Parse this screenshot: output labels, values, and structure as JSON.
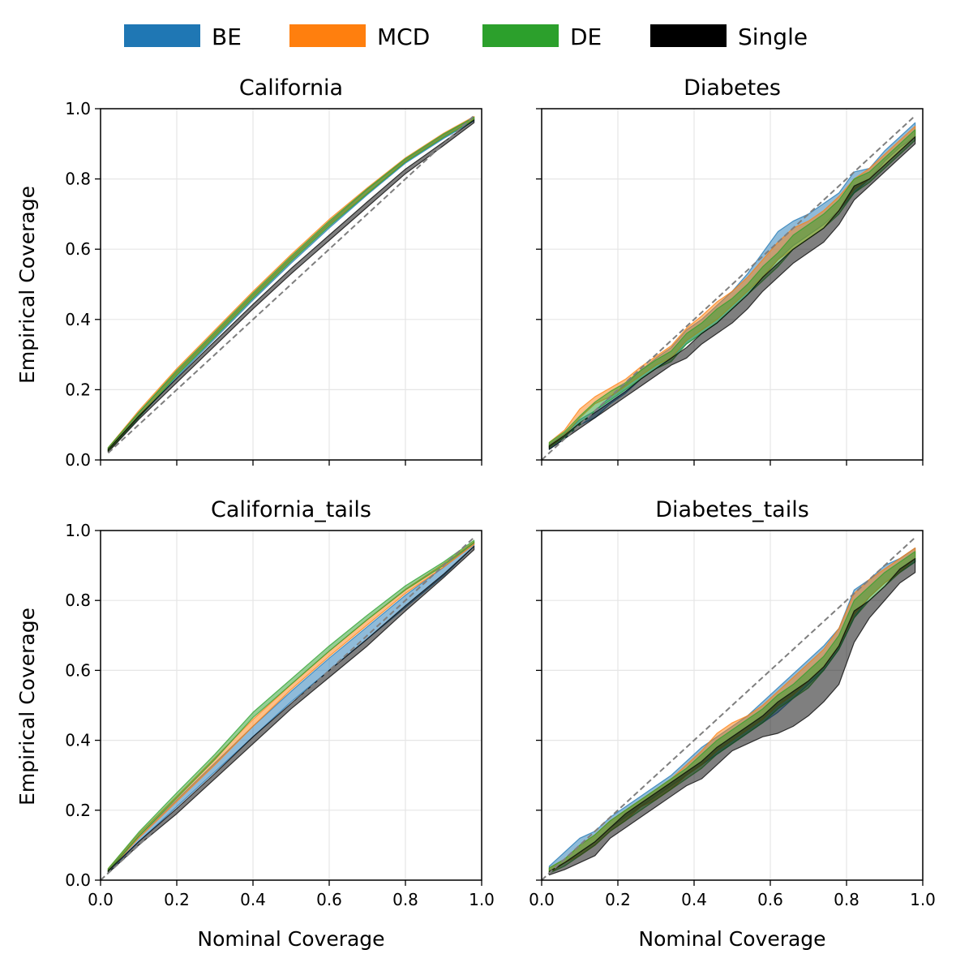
{
  "legend": {
    "items": [
      {
        "label": "BE",
        "color": "#1f77b4"
      },
      {
        "label": "MCD",
        "color": "#ff7f0e"
      },
      {
        "label": "DE",
        "color": "#2ca02c"
      },
      {
        "label": "Single",
        "color": "#000000"
      }
    ]
  },
  "chart_data": [
    {
      "type": "area",
      "title": "California",
      "xlabel": "",
      "ylabel": "Empirical Coverage",
      "xlim": [
        0,
        1
      ],
      "ylim": [
        0,
        1
      ],
      "xticks": [
        "0.0",
        "0.2",
        "0.4",
        "0.6",
        "0.8",
        "1.0"
      ],
      "yticks": [
        "0.0",
        "0.2",
        "0.4",
        "0.6",
        "0.8",
        "1.0"
      ],
      "show_xtick_labels": false,
      "show_ytick_labels": true,
      "grid": true,
      "reference_line": {
        "x": [
          0.02,
          0.98
        ],
        "y": [
          0.02,
          0.98
        ]
      },
      "x": [
        0.02,
        0.1,
        0.2,
        0.3,
        0.4,
        0.5,
        0.6,
        0.7,
        0.8,
        0.9,
        0.98
      ],
      "series": [
        {
          "name": "BE",
          "lower": [
            0.025,
            0.12,
            0.235,
            0.345,
            0.455,
            0.56,
            0.66,
            0.755,
            0.845,
            0.915,
            0.965
          ],
          "upper": [
            0.035,
            0.135,
            0.25,
            0.36,
            0.47,
            0.575,
            0.675,
            0.77,
            0.855,
            0.925,
            0.975
          ]
        },
        {
          "name": "MCD",
          "lower": [
            0.025,
            0.125,
            0.245,
            0.355,
            0.465,
            0.57,
            0.67,
            0.76,
            0.85,
            0.92,
            0.97
          ],
          "upper": [
            0.035,
            0.14,
            0.26,
            0.37,
            0.48,
            0.585,
            0.685,
            0.775,
            0.86,
            0.93,
            0.978
          ]
        },
        {
          "name": "DE",
          "lower": [
            0.025,
            0.12,
            0.24,
            0.35,
            0.46,
            0.565,
            0.665,
            0.758,
            0.848,
            0.918,
            0.968
          ],
          "upper": [
            0.035,
            0.135,
            0.255,
            0.365,
            0.475,
            0.58,
            0.68,
            0.772,
            0.858,
            0.928,
            0.976
          ]
        },
        {
          "name": "Single",
          "lower": [
            0.022,
            0.115,
            0.22,
            0.325,
            0.43,
            0.53,
            0.625,
            0.72,
            0.815,
            0.895,
            0.96
          ],
          "upper": [
            0.03,
            0.125,
            0.232,
            0.338,
            0.443,
            0.545,
            0.64,
            0.735,
            0.828,
            0.905,
            0.968
          ]
        }
      ]
    },
    {
      "type": "area",
      "title": "Diabetes",
      "xlabel": "",
      "ylabel": "",
      "xlim": [
        0,
        1
      ],
      "ylim": [
        0,
        1
      ],
      "xticks": [
        "0.0",
        "0.2",
        "0.4",
        "0.6",
        "0.8",
        "1.0"
      ],
      "yticks": [
        "0.0",
        "0.2",
        "0.4",
        "0.6",
        "0.8",
        "1.0"
      ],
      "show_xtick_labels": false,
      "show_ytick_labels": false,
      "grid": true,
      "reference_line": {
        "x": [
          0.0,
          0.98
        ],
        "y": [
          0.0,
          0.98
        ]
      },
      "x": [
        0.02,
        0.06,
        0.1,
        0.14,
        0.18,
        0.22,
        0.26,
        0.3,
        0.34,
        0.38,
        0.42,
        0.46,
        0.5,
        0.54,
        0.58,
        0.62,
        0.66,
        0.7,
        0.74,
        0.78,
        0.82,
        0.86,
        0.9,
        0.94,
        0.98
      ],
      "series": [
        {
          "name": "BE",
          "lower": [
            0.03,
            0.06,
            0.1,
            0.12,
            0.16,
            0.19,
            0.23,
            0.26,
            0.29,
            0.33,
            0.36,
            0.39,
            0.43,
            0.47,
            0.52,
            0.57,
            0.61,
            0.64,
            0.67,
            0.71,
            0.76,
            0.8,
            0.85,
            0.89,
            0.92
          ],
          "upper": [
            0.045,
            0.075,
            0.115,
            0.14,
            0.18,
            0.215,
            0.255,
            0.29,
            0.32,
            0.37,
            0.4,
            0.44,
            0.48,
            0.53,
            0.59,
            0.65,
            0.68,
            0.7,
            0.73,
            0.76,
            0.82,
            0.83,
            0.88,
            0.92,
            0.96
          ]
        },
        {
          "name": "MCD",
          "lower": [
            0.035,
            0.07,
            0.12,
            0.16,
            0.18,
            0.21,
            0.24,
            0.27,
            0.29,
            0.34,
            0.37,
            0.4,
            0.44,
            0.48,
            0.52,
            0.57,
            0.6,
            0.63,
            0.66,
            0.71,
            0.77,
            0.8,
            0.84,
            0.88,
            0.92
          ],
          "upper": [
            0.05,
            0.085,
            0.145,
            0.18,
            0.205,
            0.23,
            0.265,
            0.295,
            0.325,
            0.375,
            0.41,
            0.45,
            0.48,
            0.52,
            0.57,
            0.62,
            0.66,
            0.68,
            0.71,
            0.75,
            0.8,
            0.83,
            0.87,
            0.91,
            0.95
          ]
        },
        {
          "name": "DE",
          "lower": [
            0.035,
            0.065,
            0.1,
            0.14,
            0.17,
            0.2,
            0.23,
            0.26,
            0.28,
            0.33,
            0.36,
            0.39,
            0.43,
            0.47,
            0.51,
            0.55,
            0.6,
            0.63,
            0.66,
            0.7,
            0.76,
            0.79,
            0.83,
            0.87,
            0.91
          ],
          "upper": [
            0.05,
            0.08,
            0.125,
            0.165,
            0.195,
            0.22,
            0.255,
            0.285,
            0.31,
            0.36,
            0.39,
            0.43,
            0.46,
            0.5,
            0.55,
            0.59,
            0.64,
            0.67,
            0.7,
            0.74,
            0.8,
            0.82,
            0.86,
            0.9,
            0.94
          ]
        },
        {
          "name": "Single",
          "lower": [
            0.03,
            0.06,
            0.09,
            0.12,
            0.15,
            0.18,
            0.21,
            0.24,
            0.27,
            0.29,
            0.33,
            0.36,
            0.39,
            0.43,
            0.48,
            0.52,
            0.56,
            0.59,
            0.62,
            0.67,
            0.74,
            0.78,
            0.82,
            0.86,
            0.9
          ],
          "upper": [
            0.04,
            0.07,
            0.105,
            0.135,
            0.165,
            0.195,
            0.23,
            0.26,
            0.29,
            0.32,
            0.36,
            0.39,
            0.43,
            0.47,
            0.52,
            0.56,
            0.6,
            0.63,
            0.66,
            0.71,
            0.78,
            0.8,
            0.84,
            0.88,
            0.92
          ]
        }
      ]
    },
    {
      "type": "area",
      "title": "California_tails",
      "xlabel": "Nominal Coverage",
      "ylabel": "Empirical Coverage",
      "xlim": [
        0,
        1
      ],
      "ylim": [
        0,
        1
      ],
      "xticks": [
        "0.0",
        "0.2",
        "0.4",
        "0.6",
        "0.8",
        "1.0"
      ],
      "yticks": [
        "0.0",
        "0.2",
        "0.4",
        "0.6",
        "0.8",
        "1.0"
      ],
      "show_xtick_labels": true,
      "show_ytick_labels": true,
      "grid": true,
      "reference_line": {
        "x": [
          0.0,
          0.98
        ],
        "y": [
          0.0,
          0.98
        ]
      },
      "x": [
        0.02,
        0.1,
        0.2,
        0.3,
        0.4,
        0.5,
        0.6,
        0.7,
        0.8,
        0.9,
        0.98
      ],
      "series": [
        {
          "name": "BE",
          "lower": [
            0.022,
            0.11,
            0.21,
            0.31,
            0.41,
            0.51,
            0.6,
            0.69,
            0.78,
            0.87,
            0.955
          ],
          "upper": [
            0.03,
            0.125,
            0.23,
            0.335,
            0.44,
            0.54,
            0.635,
            0.725,
            0.815,
            0.895,
            0.965
          ]
        },
        {
          "name": "MCD",
          "lower": [
            0.025,
            0.12,
            0.225,
            0.33,
            0.44,
            0.545,
            0.64,
            0.73,
            0.82,
            0.895,
            0.96
          ],
          "upper": [
            0.033,
            0.132,
            0.24,
            0.35,
            0.46,
            0.56,
            0.655,
            0.745,
            0.832,
            0.905,
            0.968
          ]
        },
        {
          "name": "DE",
          "lower": [
            0.025,
            0.125,
            0.235,
            0.345,
            0.465,
            0.56,
            0.655,
            0.745,
            0.83,
            0.9,
            0.965
          ],
          "upper": [
            0.033,
            0.137,
            0.25,
            0.36,
            0.48,
            0.575,
            0.67,
            0.758,
            0.842,
            0.91,
            0.972
          ]
        },
        {
          "name": "Single",
          "lower": [
            0.02,
            0.1,
            0.19,
            0.29,
            0.39,
            0.49,
            0.58,
            0.67,
            0.77,
            0.865,
            0.945
          ],
          "upper": [
            0.027,
            0.11,
            0.205,
            0.305,
            0.41,
            0.505,
            0.6,
            0.69,
            0.785,
            0.875,
            0.955
          ]
        }
      ]
    },
    {
      "type": "area",
      "title": "Diabetes_tails",
      "xlabel": "Nominal Coverage",
      "ylabel": "",
      "xlim": [
        0,
        1
      ],
      "ylim": [
        0,
        1
      ],
      "xticks": [
        "0.0",
        "0.2",
        "0.4",
        "0.6",
        "0.8",
        "1.0"
      ],
      "yticks": [
        "0.0",
        "0.2",
        "0.4",
        "0.6",
        "0.8",
        "1.0"
      ],
      "show_xtick_labels": true,
      "show_ytick_labels": false,
      "grid": true,
      "reference_line": {
        "x": [
          0.0,
          0.98
        ],
        "y": [
          0.0,
          0.98
        ]
      },
      "x": [
        0.02,
        0.06,
        0.1,
        0.14,
        0.18,
        0.22,
        0.26,
        0.3,
        0.34,
        0.38,
        0.42,
        0.46,
        0.5,
        0.54,
        0.58,
        0.62,
        0.66,
        0.7,
        0.74,
        0.78,
        0.82,
        0.86,
        0.9,
        0.94,
        0.98
      ],
      "series": [
        {
          "name": "BE",
          "lower": [
            0.02,
            0.05,
            0.08,
            0.11,
            0.15,
            0.18,
            0.21,
            0.24,
            0.27,
            0.3,
            0.33,
            0.36,
            0.39,
            0.42,
            0.45,
            0.48,
            0.52,
            0.56,
            0.6,
            0.66,
            0.75,
            0.81,
            0.85,
            0.88,
            0.91
          ],
          "upper": [
            0.04,
            0.08,
            0.12,
            0.14,
            0.18,
            0.21,
            0.24,
            0.27,
            0.3,
            0.34,
            0.38,
            0.41,
            0.44,
            0.47,
            0.51,
            0.55,
            0.59,
            0.63,
            0.67,
            0.72,
            0.83,
            0.86,
            0.9,
            0.92,
            0.95
          ]
        },
        {
          "name": "MCD",
          "lower": [
            0.02,
            0.05,
            0.07,
            0.1,
            0.14,
            0.17,
            0.21,
            0.23,
            0.26,
            0.3,
            0.33,
            0.37,
            0.4,
            0.43,
            0.46,
            0.5,
            0.53,
            0.57,
            0.61,
            0.67,
            0.76,
            0.81,
            0.85,
            0.88,
            0.92
          ],
          "upper": [
            0.035,
            0.06,
            0.1,
            0.13,
            0.17,
            0.2,
            0.23,
            0.26,
            0.29,
            0.33,
            0.37,
            0.42,
            0.45,
            0.47,
            0.5,
            0.54,
            0.58,
            0.62,
            0.66,
            0.72,
            0.82,
            0.86,
            0.89,
            0.92,
            0.95
          ]
        },
        {
          "name": "DE",
          "lower": [
            0.02,
            0.04,
            0.07,
            0.1,
            0.14,
            0.17,
            0.2,
            0.23,
            0.26,
            0.29,
            0.32,
            0.36,
            0.39,
            0.42,
            0.45,
            0.49,
            0.52,
            0.55,
            0.6,
            0.66,
            0.75,
            0.8,
            0.84,
            0.88,
            0.91
          ],
          "upper": [
            0.035,
            0.06,
            0.1,
            0.13,
            0.17,
            0.2,
            0.23,
            0.26,
            0.29,
            0.32,
            0.36,
            0.4,
            0.43,
            0.46,
            0.49,
            0.53,
            0.56,
            0.6,
            0.64,
            0.7,
            0.8,
            0.84,
            0.88,
            0.91,
            0.94
          ]
        },
        {
          "name": "Single",
          "lower": [
            0.015,
            0.03,
            0.05,
            0.07,
            0.12,
            0.15,
            0.18,
            0.21,
            0.24,
            0.27,
            0.29,
            0.33,
            0.37,
            0.39,
            0.41,
            0.42,
            0.44,
            0.47,
            0.51,
            0.56,
            0.68,
            0.75,
            0.8,
            0.85,
            0.88
          ],
          "upper": [
            0.025,
            0.05,
            0.08,
            0.11,
            0.15,
            0.19,
            0.22,
            0.25,
            0.28,
            0.31,
            0.34,
            0.38,
            0.41,
            0.44,
            0.47,
            0.51,
            0.54,
            0.57,
            0.61,
            0.67,
            0.77,
            0.8,
            0.84,
            0.89,
            0.92
          ]
        }
      ]
    }
  ]
}
